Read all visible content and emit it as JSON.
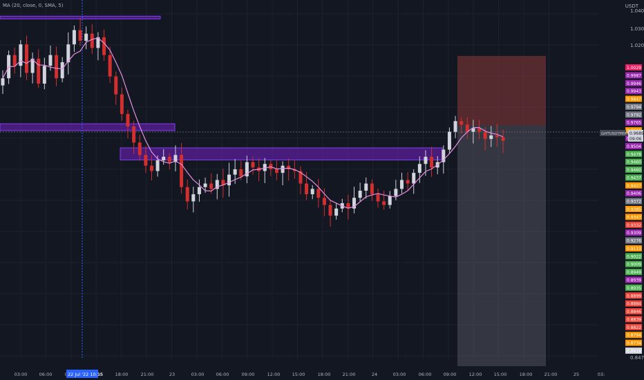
{
  "indicator_label": "MA (20, close, 0, SMA, 5)",
  "currency": "USDT",
  "symbol_label": "GHTUSDTPERP",
  "last_price": "0.9689",
  "countdown": "09:06",
  "colors": {
    "background": "#131722",
    "grid": "#1e222d",
    "up": "#d1d4dc",
    "down": "#d32f2f",
    "ma": "#e78fe0",
    "zone": "#6a1fb8",
    "stop_zone": "#8b3a3a",
    "target_zone": "#5d606b",
    "crosshair": "#2962ff",
    "axis_text": "#b2b5be"
  },
  "axes": {
    "y_ticks": [
      "1.0400",
      "1.0300",
      "1.0200",
      "0.8475"
    ],
    "x_ticks": [
      "03:00",
      "06:00",
      "09:00",
      "15:00",
      "18:00",
      "21:00",
      "23",
      "03:00",
      "06:00",
      "09:00",
      "12:00",
      "15:00",
      "18:00",
      "21:00",
      "24",
      "03:00",
      "06:00",
      "09:00",
      "12:00",
      "15:00",
      "18:00",
      "21:00",
      "25",
      "03:"
    ],
    "crosshair_time": "22 Jul '22",
    "crosshair_clock": "10:15"
  },
  "price_labels": [
    {
      "text": "1.0029",
      "color": "#e91e63"
    },
    {
      "text": "0.9987",
      "color": "#9c27b0"
    },
    {
      "text": "0.9946",
      "color": "#9c27b0"
    },
    {
      "text": "0.9943",
      "color": "#9c27b0"
    },
    {
      "text": "0.9847",
      "color": "#ff9800"
    },
    {
      "text": "0.9794",
      "color": "#787b86"
    },
    {
      "text": "0.9792",
      "color": "#787b86"
    },
    {
      "text": "0.9765",
      "color": "#9c27b0"
    },
    {
      "text": "0.9611",
      "color": "#ff9800"
    },
    {
      "text": "0.9529",
      "color": "#9c27b0"
    },
    {
      "text": "0.9504",
      "color": "#9c27b0"
    },
    {
      "text": "0.9478",
      "color": "#4caf50"
    },
    {
      "text": "0.9460",
      "color": "#4caf50"
    },
    {
      "text": "0.9460",
      "color": "#4caf50"
    },
    {
      "text": "0.9437",
      "color": "#4caf50"
    },
    {
      "text": "0.9427",
      "color": "#ff9800"
    },
    {
      "text": "0.9406",
      "color": "#9c27b0"
    },
    {
      "text": "0.9372",
      "color": "#787b86"
    },
    {
      "text": "0.9385",
      "color": "#ff9800"
    },
    {
      "text": "0.9347",
      "color": "#ff9800"
    },
    {
      "text": "0.9332",
      "color": "#f44336"
    },
    {
      "text": "0.9309",
      "color": "#9c27b0"
    },
    {
      "text": "0.9276",
      "color": "#787b86"
    },
    {
      "text": "0.9113",
      "color": "#ff9800"
    },
    {
      "text": "0.9022",
      "color": "#4caf50"
    },
    {
      "text": "0.9009",
      "color": "#4caf50"
    },
    {
      "text": "0.8949",
      "color": "#4caf50"
    },
    {
      "text": "0.8939",
      "color": "#9c27b0"
    },
    {
      "text": "0.8935",
      "color": "#4caf50"
    },
    {
      "text": "0.8899",
      "color": "#f44336"
    },
    {
      "text": "0.8884",
      "color": "#f44336"
    },
    {
      "text": "0.8846",
      "color": "#f44336"
    },
    {
      "text": "0.8839",
      "color": "#f44336"
    },
    {
      "text": "0.8822",
      "color": "#f44336"
    },
    {
      "text": "0.8794",
      "color": "#ff9800"
    },
    {
      "text": "0.8734",
      "color": "#ff9800"
    },
    {
      "text": "0.8618",
      "color": "#d1d4dc"
    }
  ],
  "chart_data": {
    "type": "candlestick",
    "symbol": "GHTUSDTPERP",
    "price_range": [
      0.8475,
      1.045
    ],
    "close_series": [
      1.005,
      1.018,
      1.012,
      1.024,
      1.008,
      1.016,
      1.002,
      1.012,
      1.018,
      1.005,
      1.014,
      1.024,
      1.032,
      1.026,
      1.03,
      1.022,
      1.028,
      1.018,
      1.006,
      0.996,
      0.985,
      0.978,
      0.969,
      0.962,
      0.956,
      0.953,
      0.959,
      0.961,
      0.958,
      0.962,
      0.944,
      0.936,
      0.94,
      0.944,
      0.946,
      0.943,
      0.948,
      0.945,
      0.951,
      0.954,
      0.95,
      0.958,
      0.955,
      0.953,
      0.957,
      0.954,
      0.952,
      0.956,
      0.954,
      0.953,
      0.946,
      0.94,
      0.943,
      0.938,
      0.934,
      0.928,
      0.932,
      0.935,
      0.932,
      0.938,
      0.942,
      0.946,
      0.94,
      0.936,
      0.934,
      0.939,
      0.943,
      0.948,
      0.946,
      0.952,
      0.957,
      0.961,
      0.955,
      0.958,
      0.965,
      0.975,
      0.981,
      0.979,
      0.975,
      0.977,
      0.975,
      0.971,
      0.973,
      0.972,
      0.97
    ],
    "ma_period": 20,
    "zones": [
      {
        "price_top": 1.0398,
        "price_bottom": 1.0388
      },
      {
        "price_top": 0.9795,
        "price_bottom": 0.9757
      },
      {
        "price_top": 0.966,
        "price_bottom": 0.9592
      }
    ],
    "position": {
      "entry": 0.9689,
      "stop": 0.9943,
      "target": 0.8618
    }
  }
}
